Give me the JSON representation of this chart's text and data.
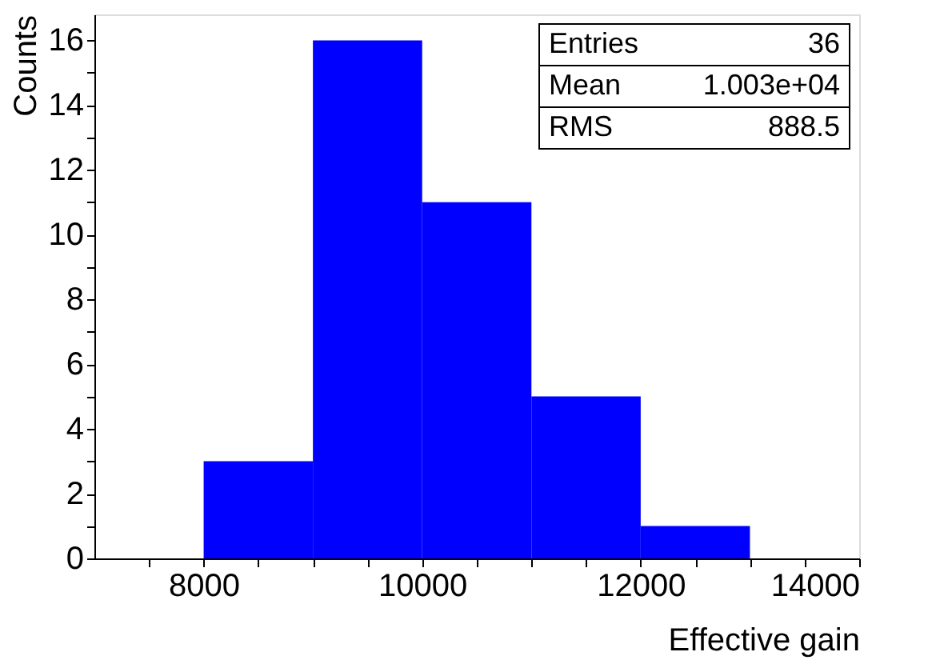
{
  "chart_data": {
    "type": "histogram",
    "xlabel": "Effective gain",
    "ylabel": "Counts",
    "bins": [
      8000,
      9000,
      10000,
      11000,
      12000,
      13000
    ],
    "values": [
      3,
      16,
      11,
      5,
      1
    ],
    "color": "#0000ff",
    "xlim": [
      7000,
      14000
    ],
    "xticks": [
      {
        "value": 7500,
        "label": null
      },
      8000,
      {
        "value": 8500,
        "label": null
      },
      {
        "value": 9000,
        "label": null
      },
      {
        "value": 9500,
        "label": null
      },
      10000,
      {
        "value": 10500,
        "label": null
      },
      {
        "value": 11000,
        "label": null
      },
      {
        "value": 11500,
        "label": null
      },
      12000,
      {
        "value": 12500,
        "label": null
      },
      {
        "value": 13000,
        "label": null
      },
      {
        "value": 13500,
        "label": null
      },
      14000
    ],
    "ylim": [
      0,
      16.8
    ],
    "yticks": [
      0,
      {
        "value": 1,
        "label": null
      },
      2,
      {
        "value": 3,
        "label": null
      },
      4,
      {
        "value": 5,
        "label": null
      },
      6,
      {
        "value": 7,
        "label": null
      },
      8,
      {
        "value": 9,
        "label": null
      },
      10,
      {
        "value": 11,
        "label": null
      },
      12,
      {
        "value": 13,
        "label": null
      },
      14,
      {
        "value": 15,
        "label": null
      },
      16
    ],
    "grid": false,
    "annotations": [
      "Entries 36",
      "Mean 1.003e+04",
      "RMS 888.5"
    ]
  }
}
